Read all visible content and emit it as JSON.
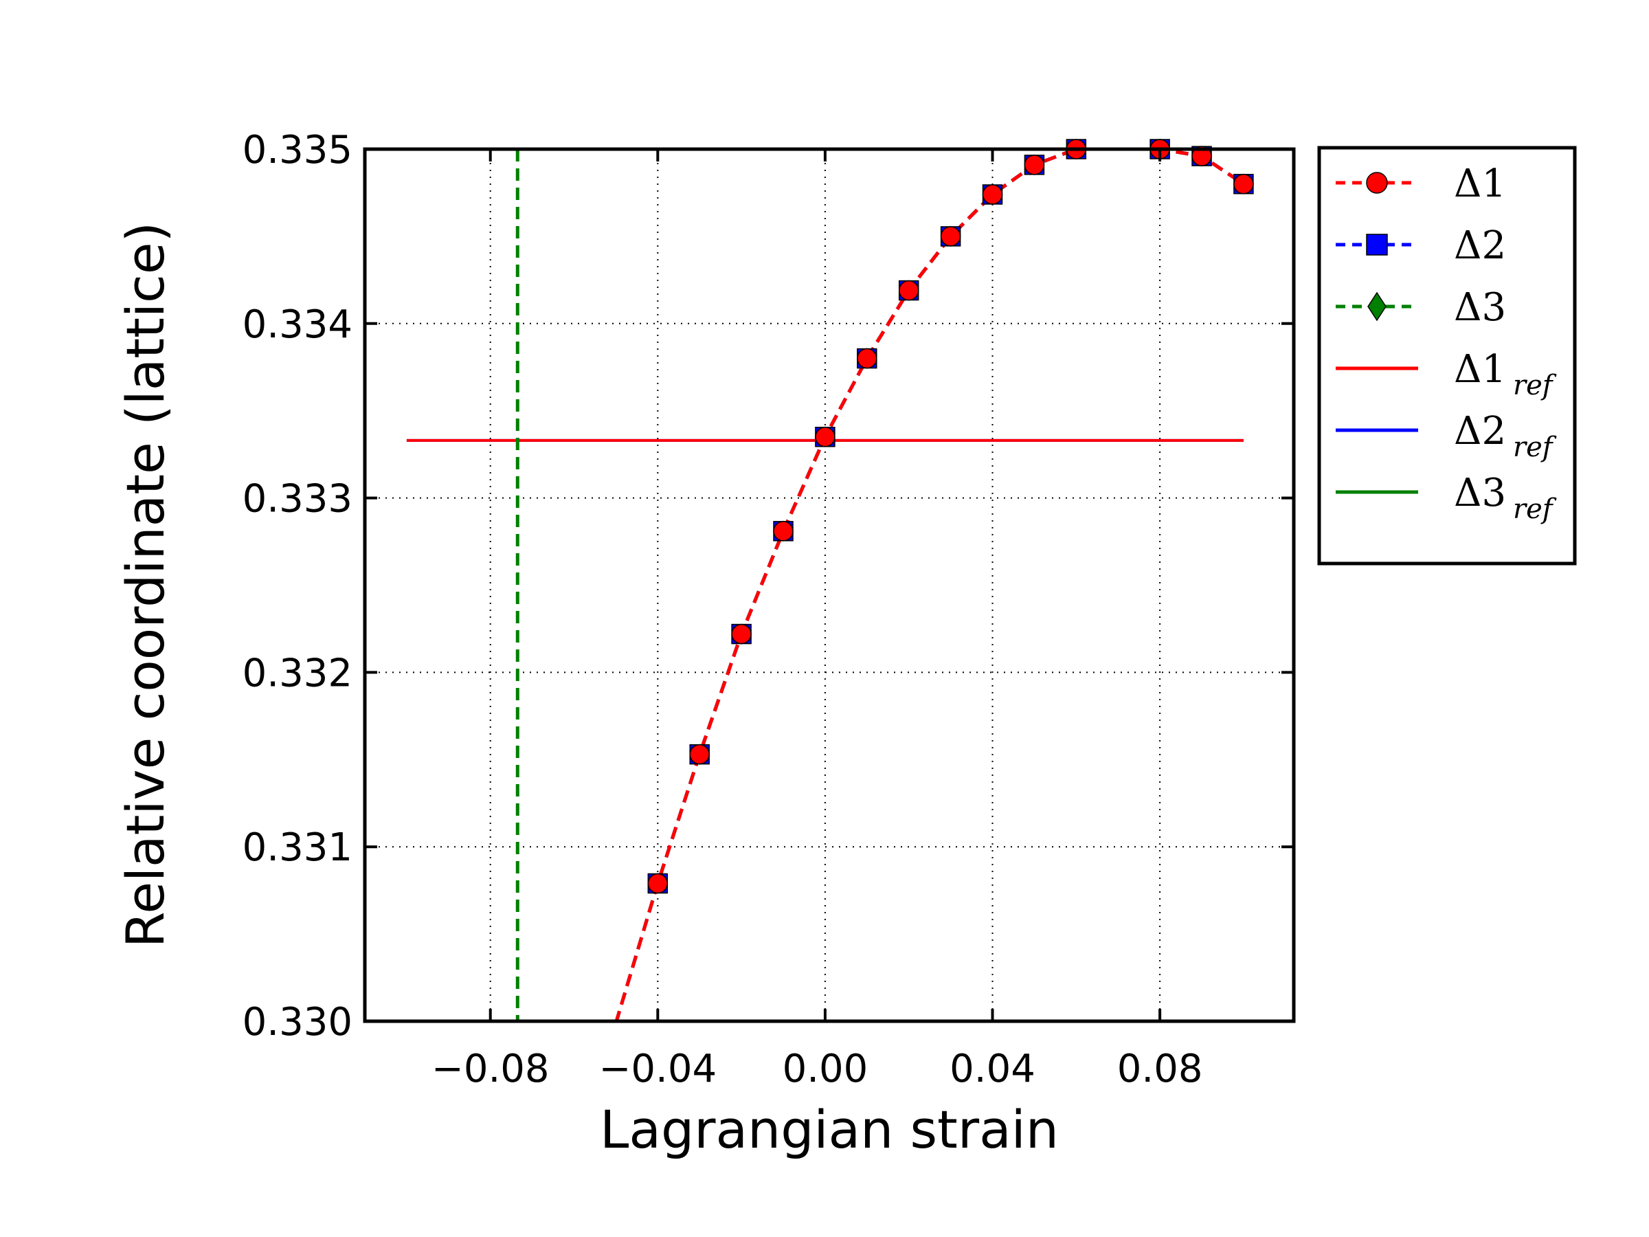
{
  "chart_data": {
    "type": "line",
    "xlabel": "Lagrangian strain",
    "ylabel": "Relative coordinate (lattice)",
    "xlim": [
      -0.11,
      0.112
    ],
    "ylim": [
      0.33,
      0.335
    ],
    "xticks": [
      -0.08,
      -0.04,
      0.0,
      0.04,
      0.08
    ],
    "xtick_labels": [
      "−0.08",
      "−0.04",
      "0.00",
      "0.04",
      "0.08"
    ],
    "yticks": [
      0.33,
      0.331,
      0.332,
      0.333,
      0.334,
      0.335
    ],
    "ytick_labels": [
      "0.330",
      "0.331",
      "0.332",
      "0.333",
      "0.334",
      "0.335"
    ],
    "grid": true,
    "legend_position": "outside-right-top",
    "x": [
      -0.05,
      -0.04,
      -0.03,
      -0.02,
      -0.01,
      0.0,
      0.01,
      0.02,
      0.03,
      0.04,
      0.05,
      0.06,
      0.07,
      0.08,
      0.09,
      0.1
    ],
    "series": [
      {
        "name": "Δ1",
        "style": "dashed-circle",
        "color": "#ff0000",
        "values": [
          0.32999,
          0.33079,
          0.33153,
          0.33222,
          0.33281,
          0.33335,
          0.3338,
          0.33419,
          0.3345,
          0.33474,
          0.33491,
          0.335,
          0.33503,
          0.335,
          0.33496,
          0.3348
        ]
      },
      {
        "name": "Δ2",
        "style": "dashed-square",
        "color": "#0000ff",
        "values": [
          0.32999,
          0.33079,
          0.33153,
          0.33222,
          0.33281,
          0.33335,
          0.3338,
          0.33419,
          0.3345,
          0.33474,
          0.33491,
          0.335,
          0.33503,
          0.335,
          0.33496,
          0.3348
        ]
      },
      {
        "name": "Δ3",
        "style": "dashed-diamond",
        "color": "#008000",
        "values": [
          0.32999,
          0.33079,
          0.33153,
          0.33222,
          0.33281,
          0.33335,
          0.3338,
          0.33419,
          0.3345,
          0.33474,
          0.33491,
          0.335,
          0.33503,
          0.335,
          0.33496,
          0.3348
        ]
      }
    ],
    "reference_lines": [
      {
        "name": "Δ1",
        "subscript": "ref",
        "color": "#ff0000",
        "orientation": "horizontal",
        "y": 0.33333,
        "x_range": [
          -0.1,
          0.1
        ]
      },
      {
        "name": "Δ2",
        "subscript": "ref",
        "color": "#0000ff",
        "orientation": "horizontal",
        "y": 0.33333,
        "x_range": [
          -0.1,
          0.1
        ]
      },
      {
        "name": "Δ3",
        "subscript": "ref",
        "color": "#008000",
        "orientation": "vertical-dashed",
        "x": -0.0735
      }
    ]
  }
}
